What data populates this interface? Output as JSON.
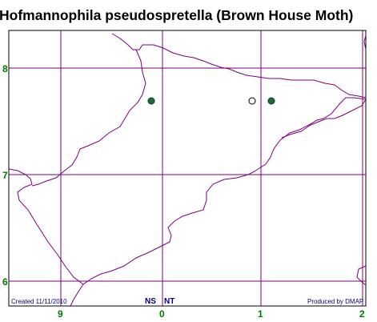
{
  "title": "Hofmannophila pseudospretella (Brown House Moth)",
  "x_tick_labels": [
    "9",
    "0",
    "1",
    "2"
  ],
  "y_tick_labels": [
    "8",
    "7",
    "6"
  ],
  "grid_refs": [
    "NS",
    "NT"
  ],
  "created_text": "Created 11/11/2010",
  "produced_text": "Produced by DMAP",
  "colors": {
    "grid": "#7a007a",
    "coast": "#7a007a",
    "labels": "#007a00",
    "footer_text": "#00007a",
    "record_filled": "#1f6b3a",
    "record_open": "#ffffff"
  },
  "records": [
    {
      "type": "filled"
    },
    {
      "type": "open"
    },
    {
      "type": "filled"
    }
  ]
}
